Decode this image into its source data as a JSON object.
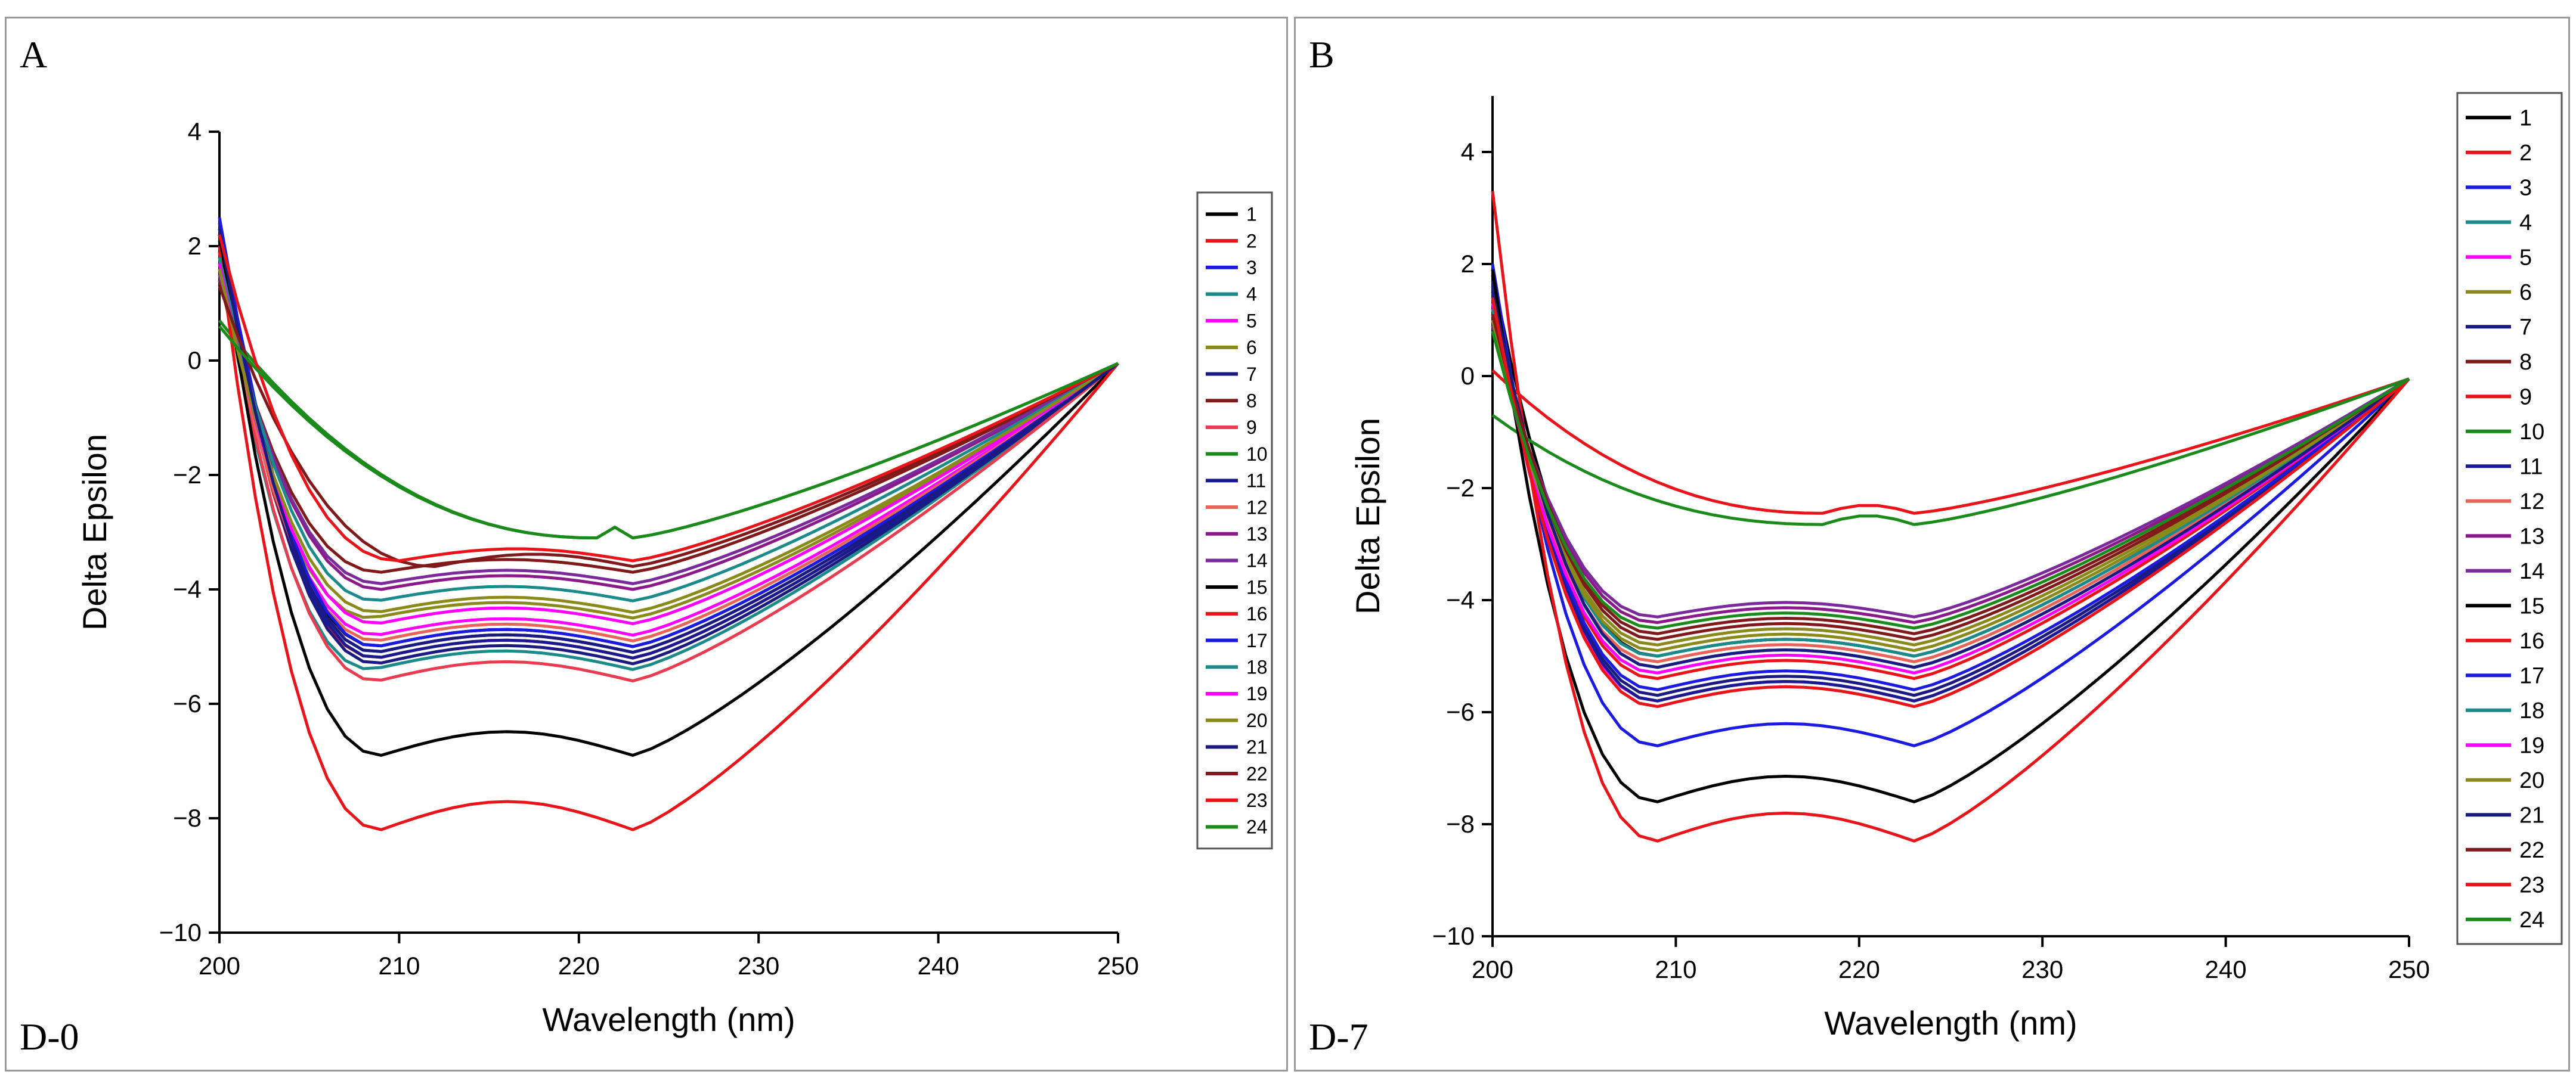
{
  "chart_data": [
    {
      "type": "line",
      "panel_label": "A",
      "condition_label": "D-0",
      "title": "",
      "xlabel": "Wavelength (nm)",
      "ylabel": "Delta Epsilon",
      "xlim": [
        200,
        250
      ],
      "ylim": [
        -10,
        4
      ],
      "xticks": [
        200,
        210,
        220,
        230,
        240,
        250
      ],
      "yticks": [
        -10,
        -8,
        -6,
        -4,
        -2,
        0,
        2,
        4
      ],
      "xtick_labels": [
        "200",
        "210",
        "220",
        "230",
        "240",
        "250"
      ],
      "ytick_labels": [
        "−10",
        "−8",
        "−6",
        "−4",
        "−2",
        "0",
        "2",
        "4"
      ],
      "legend_position": "right",
      "x": [
        200,
        201,
        202,
        203,
        204,
        205,
        206,
        207,
        208,
        209,
        210,
        211,
        212,
        213,
        214,
        215,
        216,
        217,
        218,
        219,
        220,
        221,
        222,
        223,
        224,
        225,
        226,
        227,
        228,
        229,
        230,
        231,
        232,
        233,
        234,
        235,
        236,
        237,
        238,
        239,
        240,
        241,
        242,
        243,
        244,
        245,
        246,
        247,
        248,
        249,
        250
      ],
      "series": [
        {
          "name": "1",
          "color": "#000000",
          "min_value": -5.0,
          "min_x": 208.8,
          "start": 2.1
        },
        {
          "name": "2",
          "color": "#e8141a",
          "min_value": -5.2,
          "min_x": 208.8,
          "start": 2.0
        },
        {
          "name": "3",
          "color": "#1a1ae0",
          "min_value": -5.1,
          "min_x": 208.8,
          "start": 2.2
        },
        {
          "name": "4",
          "color": "#1a8a8a",
          "min_value": -5.4,
          "min_x": 208.5,
          "start": 1.8
        },
        {
          "name": "5",
          "color": "#ff00ff",
          "min_value": -4.8,
          "min_x": 208.8,
          "start": 1.6
        },
        {
          "name": "6",
          "color": "#8a8a1a",
          "min_value": -4.5,
          "min_x": 208.5,
          "start": 1.5
        },
        {
          "name": "7",
          "color": "#1a1a80",
          "min_value": -5.3,
          "min_x": 208.8,
          "start": 2.3
        },
        {
          "name": "8",
          "color": "#801a1a",
          "min_value": -3.7,
          "min_x": 209.0,
          "start": 1.4
        },
        {
          "name": "9",
          "color": "#e83c50",
          "min_value": -5.6,
          "min_x": 208.8,
          "start": 1.9
        },
        {
          "name": "10",
          "color": "#1a8a1a",
          "min_value": -3.1,
          "min_x": 221.0,
          "start": 0.7
        },
        {
          "name": "11",
          "color": "#1a1a90",
          "min_value": -5.2,
          "min_x": 208.8,
          "start": 2.4
        },
        {
          "name": "12",
          "color": "#e8645a",
          "min_value": -4.9,
          "min_x": 208.8,
          "start": 1.7
        },
        {
          "name": "13",
          "color": "#8a1a8a",
          "min_value": -4.0,
          "min_x": 209.0,
          "start": 1.6
        },
        {
          "name": "14",
          "color": "#7a2a9a",
          "min_value": -3.9,
          "min_x": 209.0,
          "start": 1.5
        },
        {
          "name": "15",
          "color": "#000000",
          "min_value": -6.9,
          "min_x": 209.0,
          "start": 2.2
        },
        {
          "name": "16",
          "color": "#e8141a",
          "min_value": -8.2,
          "min_x": 209.0,
          "start": 1.9
        },
        {
          "name": "17",
          "color": "#1a1ae0",
          "min_value": -5.0,
          "min_x": 208.8,
          "start": 2.5
        },
        {
          "name": "18",
          "color": "#1a8a8a",
          "min_value": -4.2,
          "min_x": 208.8,
          "start": 1.8
        },
        {
          "name": "19",
          "color": "#ff00ff",
          "min_value": -4.6,
          "min_x": 208.8,
          "start": 1.7
        },
        {
          "name": "20",
          "color": "#8a8a1a",
          "min_value": -4.4,
          "min_x": 208.8,
          "start": 1.6
        },
        {
          "name": "21",
          "color": "#1a1a80",
          "min_value": -5.1,
          "min_x": 208.8,
          "start": 2.3
        },
        {
          "name": "22",
          "color": "#801a1a",
          "min_value": -3.6,
          "min_x": 212.0,
          "start": 1.3
        },
        {
          "name": "23",
          "color": "#e8141a",
          "min_value": -3.5,
          "min_x": 210.0,
          "start": 2.2
        },
        {
          "name": "24",
          "color": "#1a8a1a",
          "min_value": -3.1,
          "min_x": 221.0,
          "start": 0.6
        }
      ]
    },
    {
      "type": "line",
      "panel_label": "B",
      "condition_label": "D-7",
      "title": "",
      "xlabel": "Wavelength (nm)",
      "ylabel": "Delta Epsilon",
      "xlim": [
        200,
        250
      ],
      "ylim": [
        -10,
        5
      ],
      "xticks": [
        200,
        210,
        220,
        230,
        240,
        250
      ],
      "yticks": [
        -10,
        -8,
        -6,
        -4,
        -2,
        0,
        2,
        4
      ],
      "xtick_labels": [
        "200",
        "210",
        "220",
        "230",
        "240",
        "250"
      ],
      "ytick_labels": [
        "−10",
        "−8",
        "−6",
        "−4",
        "−2",
        "0",
        "2",
        "4"
      ],
      "legend_position": "right",
      "x": [
        200,
        201,
        202,
        203,
        204,
        205,
        206,
        207,
        208,
        209,
        210,
        211,
        212,
        213,
        214,
        215,
        216,
        217,
        218,
        219,
        220,
        221,
        222,
        223,
        224,
        225,
        226,
        227,
        228,
        229,
        230,
        231,
        232,
        233,
        234,
        235,
        236,
        237,
        238,
        239,
        240,
        241,
        242,
        243,
        244,
        245,
        246,
        247,
        248,
        249,
        250
      ],
      "series": [
        {
          "name": "1",
          "color": "#000000",
          "min_value": -5.0,
          "min_x": 209.0,
          "start": 1.8
        },
        {
          "name": "2",
          "color": "#e8141a",
          "min_value": -5.4,
          "min_x": 209.0,
          "start": 1.2
        },
        {
          "name": "3",
          "color": "#1a1ae0",
          "min_value": -6.6,
          "min_x": 209.0,
          "start": 2.0
        },
        {
          "name": "4",
          "color": "#1a8a8a",
          "min_value": -5.2,
          "min_x": 209.0,
          "start": 1.4
        },
        {
          "name": "5",
          "color": "#ff00ff",
          "min_value": -5.8,
          "min_x": 209.0,
          "start": 1.3
        },
        {
          "name": "6",
          "color": "#8a8a1a",
          "min_value": -4.8,
          "min_x": 209.0,
          "start": 1.0
        },
        {
          "name": "7",
          "color": "#1a1a80",
          "min_value": -5.7,
          "min_x": 209.0,
          "start": 1.6
        },
        {
          "name": "8",
          "color": "#801a1a",
          "min_value": -4.7,
          "min_x": 209.0,
          "start": 1.1
        },
        {
          "name": "9",
          "color": "#e8141a",
          "min_value": -2.45,
          "min_x": 218.0,
          "start": 0.1
        },
        {
          "name": "10",
          "color": "#1a8a1a",
          "min_value": -2.65,
          "min_x": 218.0,
          "start": -0.7
        },
        {
          "name": "11",
          "color": "#1a1a90",
          "min_value": -5.8,
          "min_x": 209.0,
          "start": 1.7
        },
        {
          "name": "12",
          "color": "#e8645a",
          "min_value": -5.1,
          "min_x": 209.0,
          "start": 1.0
        },
        {
          "name": "13",
          "color": "#8a1a8a",
          "min_value": -4.4,
          "min_x": 209.0,
          "start": 0.9
        },
        {
          "name": "14",
          "color": "#7a2a9a",
          "min_value": -4.3,
          "min_x": 209.0,
          "start": 0.9
        },
        {
          "name": "15",
          "color": "#000000",
          "min_value": -7.6,
          "min_x": 209.0,
          "start": 1.9
        },
        {
          "name": "16",
          "color": "#e8141a",
          "min_value": -8.3,
          "min_x": 209.0,
          "start": 3.3
        },
        {
          "name": "17",
          "color": "#1a1ae0",
          "min_value": -5.6,
          "min_x": 209.0,
          "start": 1.5
        },
        {
          "name": "18",
          "color": "#1a8a8a",
          "min_value": -5.0,
          "min_x": 209.0,
          "start": 1.2
        },
        {
          "name": "19",
          "color": "#ff00ff",
          "min_value": -5.3,
          "min_x": 209.0,
          "start": 1.1
        },
        {
          "name": "20",
          "color": "#8a8a1a",
          "min_value": -4.9,
          "min_x": 209.0,
          "start": 1.0
        },
        {
          "name": "21",
          "color": "#1a1a80",
          "min_value": -5.2,
          "min_x": 209.0,
          "start": 1.5
        },
        {
          "name": "22",
          "color": "#801a1a",
          "min_value": -4.6,
          "min_x": 209.0,
          "start": 1.1
        },
        {
          "name": "23",
          "color": "#e8141a",
          "min_value": -5.9,
          "min_x": 209.0,
          "start": 1.4
        },
        {
          "name": "24",
          "color": "#1a8a1a",
          "min_value": -4.5,
          "min_x": 209.0,
          "start": 0.8
        }
      ]
    }
  ]
}
